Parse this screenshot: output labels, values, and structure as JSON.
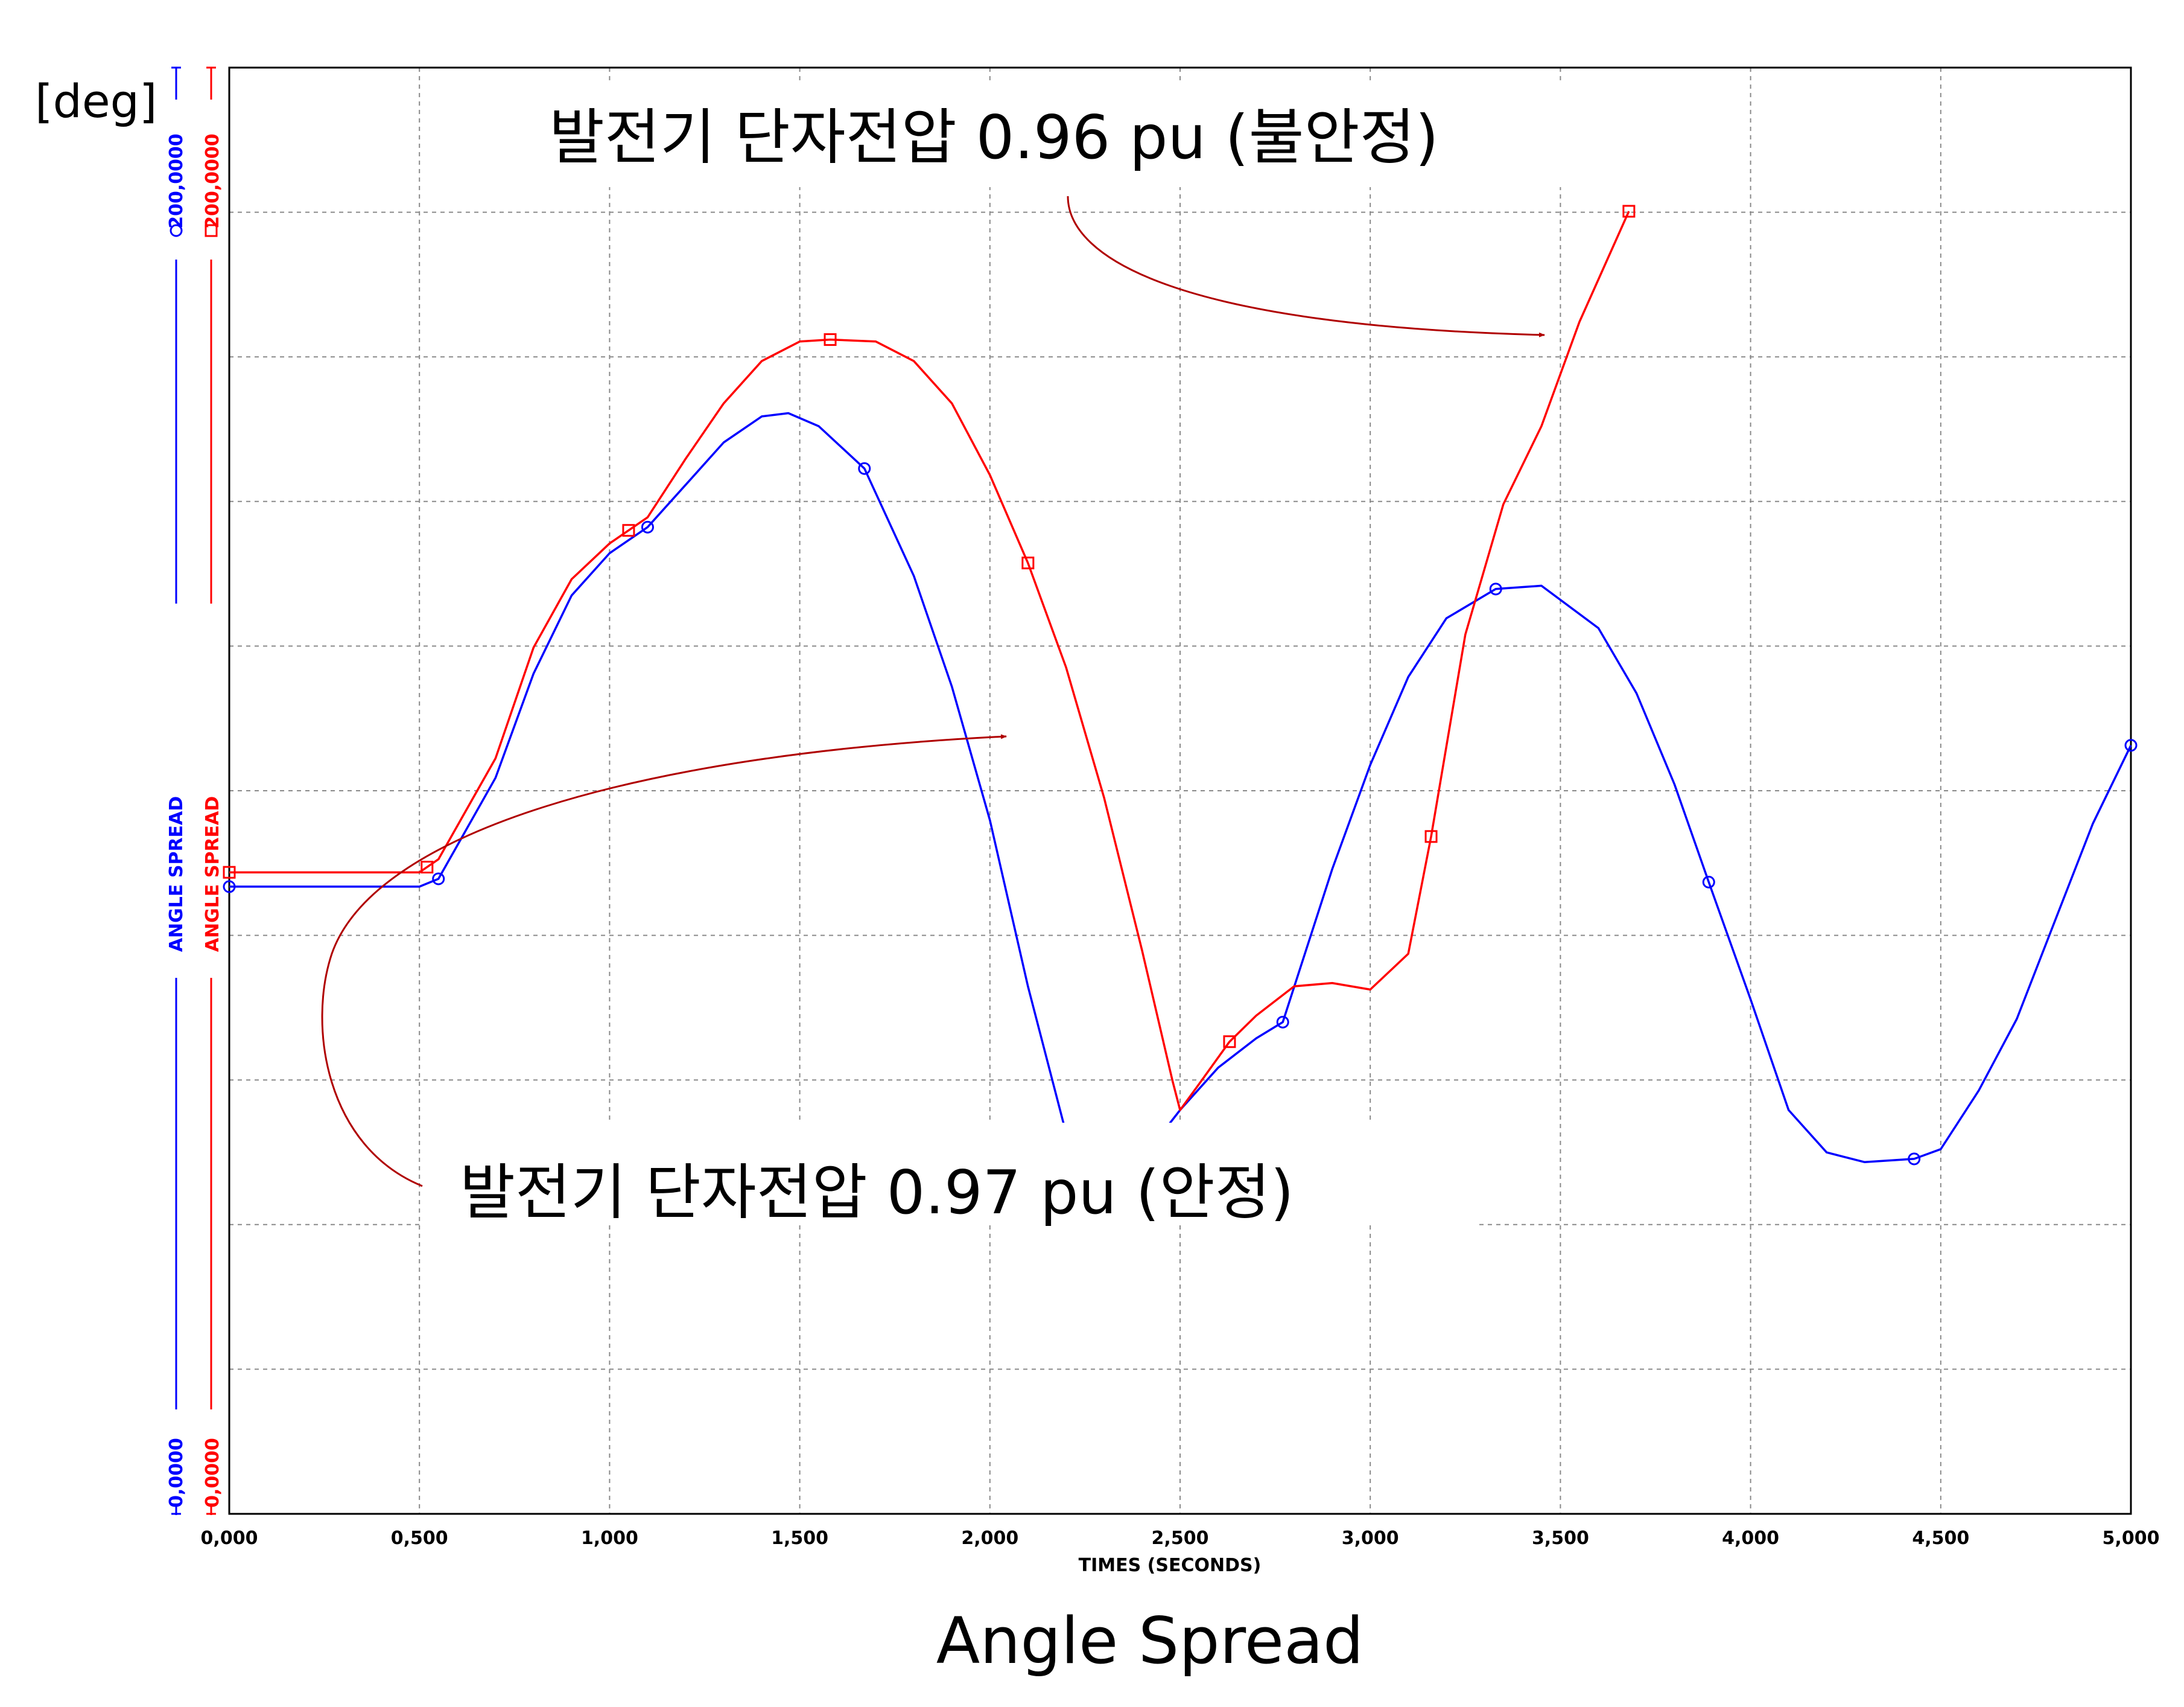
{
  "chart_data": {
    "type": "line",
    "title": "Angle Spread",
    "xlabel": "TIMES (SECONDS)",
    "unit_label": "[deg]",
    "xlim": [
      0,
      5
    ],
    "ylim": [
      0,
      200
    ],
    "grid": true,
    "x_ticks": [
      "0,000",
      "0,500",
      "1,000",
      "1,500",
      "2,000",
      "2,500",
      "3,000",
      "3,500",
      "4,000",
      "4,500",
      "5,000"
    ],
    "y_axes": [
      {
        "label": "ANGLE SPREAD",
        "min_label": "0,0000",
        "max_label": "200,0000",
        "color": "#0000ff"
      },
      {
        "label": "ANGLE SPREAD",
        "min_label": "0,0000",
        "max_label": "200,0000",
        "color": "#ff0000"
      }
    ],
    "series": [
      {
        "color": "#0000ff",
        "marker": "circle",
        "x": [
          0,
          0.5,
          0.55,
          0.7,
          0.8,
          0.9,
          1.0,
          1.1,
          1.2,
          1.3,
          1.4,
          1.47,
          1.55,
          1.67,
          1.8,
          1.9,
          2.0,
          2.1,
          2.2,
          2.3,
          2.4,
          2.5,
          2.6,
          2.7,
          2.77,
          2.9,
          3.0,
          3.1,
          3.2,
          3.33,
          3.45,
          3.6,
          3.7,
          3.8,
          3.89,
          4.0,
          4.1,
          4.2,
          4.3,
          4.43,
          4.5,
          4.6,
          4.7,
          4.8,
          4.9,
          5.0
        ],
        "y": [
          96.3,
          96.3,
          97.5,
          113,
          129,
          141,
          147.5,
          151.5,
          158,
          164.5,
          168.5,
          169,
          167,
          160.5,
          144,
          127,
          106.5,
          81,
          58.5,
          51.5,
          54.5,
          62,
          68.5,
          73,
          75.5,
          99,
          115,
          128.5,
          137.5,
          142,
          142.5,
          136,
          126,
          112,
          97,
          79,
          62,
          55.5,
          54,
          54.5,
          56,
          65,
          76,
          91,
          106,
          118
        ]
      },
      {
        "color": "#ff0000",
        "marker": "square",
        "x": [
          0,
          0.5,
          0.55,
          0.7,
          0.8,
          0.9,
          1.0,
          1.05,
          1.1,
          1.2,
          1.3,
          1.4,
          1.5,
          1.58,
          1.7,
          1.8,
          1.9,
          2.0,
          2.1,
          2.2,
          2.3,
          2.4,
          2.48,
          2.5,
          2.55,
          2.63,
          2.7,
          2.8,
          2.9,
          3.0,
          3.1,
          3.16,
          3.25,
          3.35,
          3.45,
          3.55,
          3.68
        ],
        "y": [
          98.5,
          98.5,
          100.5,
          116,
          133,
          143.5,
          149,
          151,
          153,
          162,
          170.5,
          177,
          180,
          180.3,
          180,
          177,
          170.5,
          159.5,
          146,
          130,
          110,
          86.5,
          66.5,
          62,
          66,
          72.5,
          76.5,
          81,
          81.5,
          80.5,
          86,
          104,
          135,
          155,
          167,
          183,
          200
        ]
      }
    ],
    "annotations": [
      {
        "text": "발전기 단자전압 0.96 pu (불안정)"
      },
      {
        "text": "발전기 단자전압 0.97 pu (안정)"
      }
    ]
  }
}
